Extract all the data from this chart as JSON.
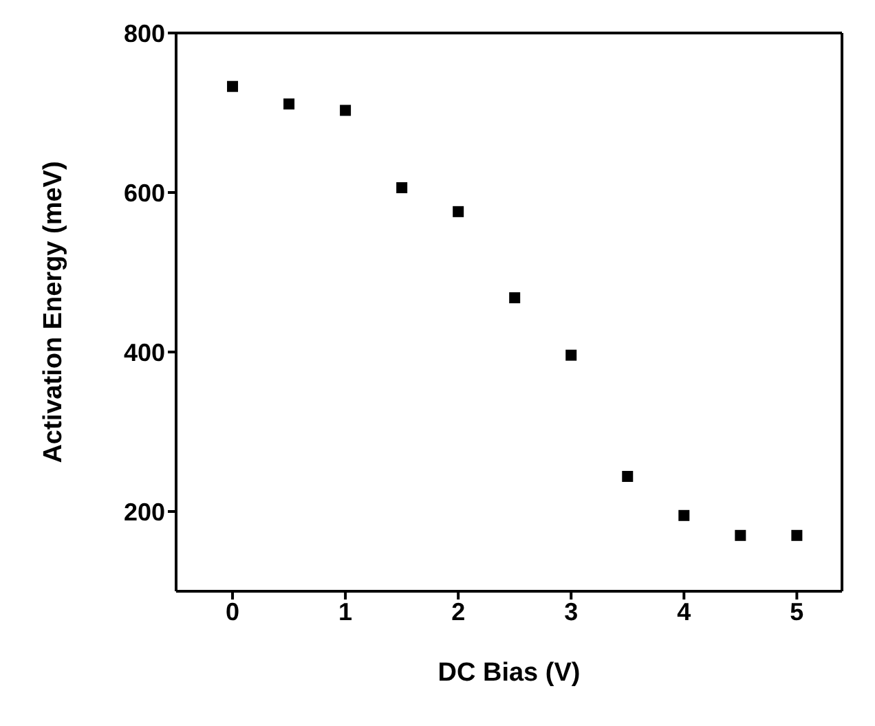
{
  "chart_data": {
    "type": "scatter",
    "xlabel": "DC Bias (V)",
    "ylabel": "Activation Energy (meV)",
    "x": [
      0,
      0.5,
      1,
      1.5,
      2,
      2.5,
      3,
      3.5,
      4,
      4.5,
      5
    ],
    "series": [
      {
        "color": "#000000",
        "values": [
          733,
          711,
          703,
          606,
          576,
          468,
          396,
          244,
          195,
          170,
          170
        ]
      }
    ],
    "xlim": [
      -0.5,
      5.4
    ],
    "xticks": [
      0,
      1,
      2,
      3,
      4,
      5
    ],
    "ylim": [
      100,
      800
    ],
    "yticks": [
      200,
      400,
      600,
      800
    ],
    "marker": "square"
  }
}
